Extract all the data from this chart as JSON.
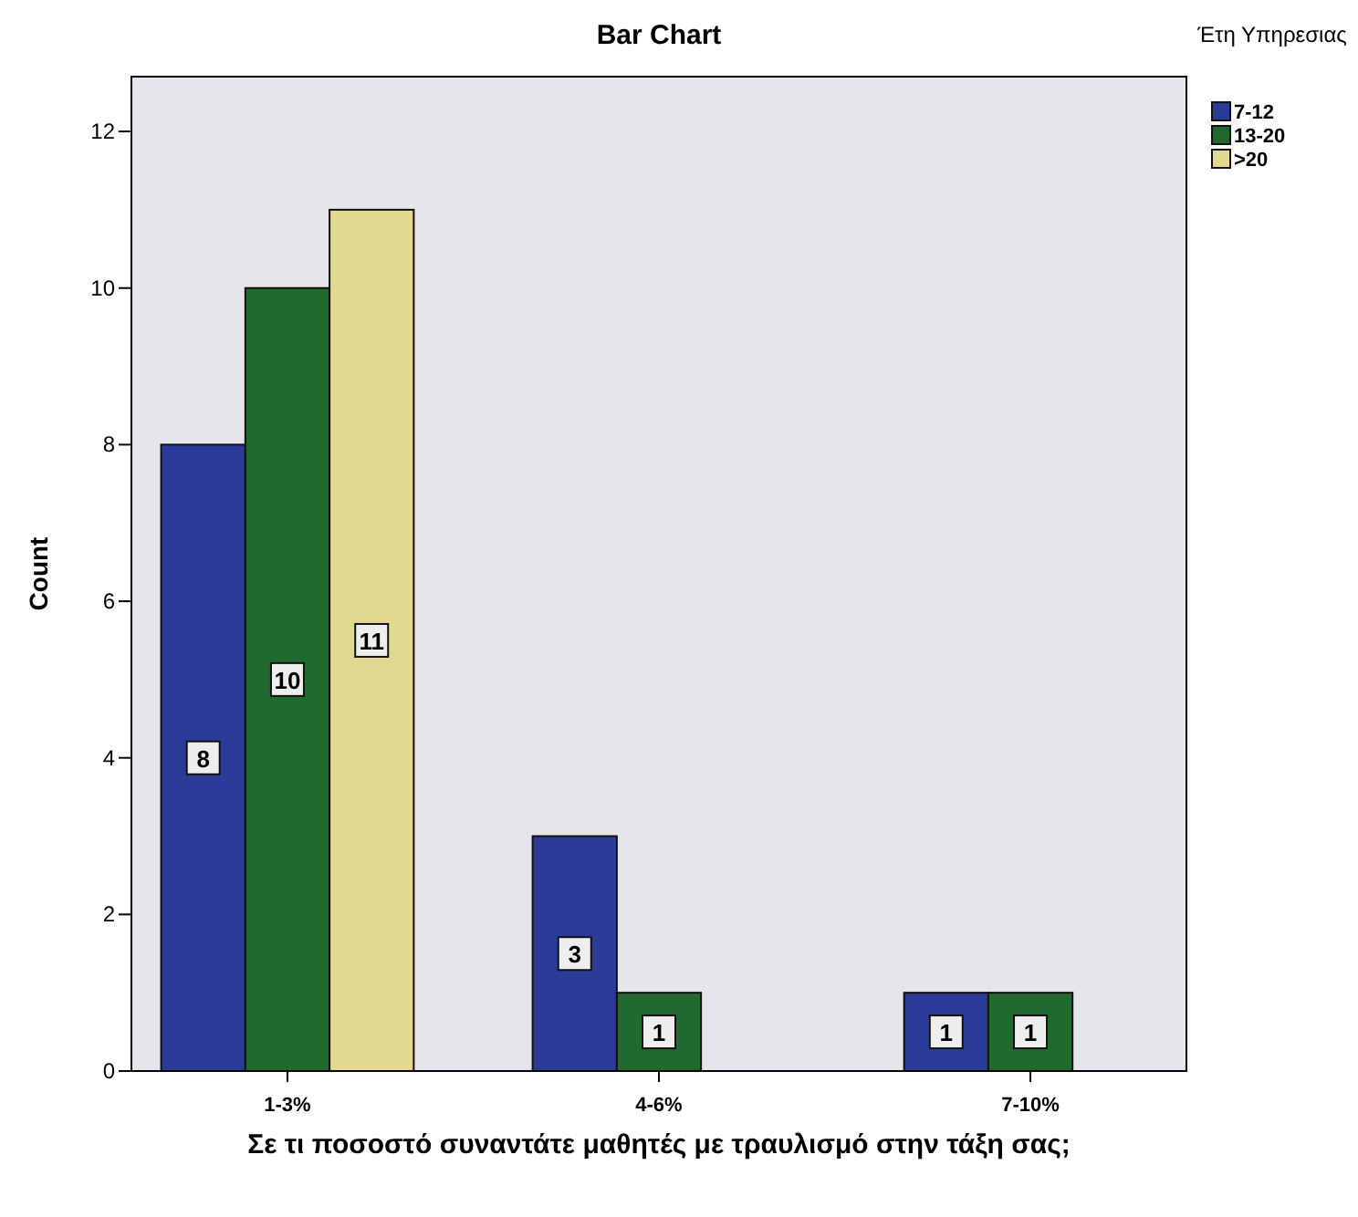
{
  "chart_data": {
    "type": "bar",
    "title": "Bar Chart",
    "xlabel": "Σε τι ποσοστό συναντάτε μαθητές με τραυλισμό στην τάξη σας;",
    "ylabel": "Count",
    "legend_title": "Έτη Υπηρεσιας",
    "categories": [
      "1-3%",
      "4-6%",
      "7-10%"
    ],
    "series": [
      {
        "name": "7-12",
        "color": "#2b3b98",
        "values": [
          8,
          3,
          1
        ]
      },
      {
        "name": "13-20",
        "color": "#1f6a2c",
        "values": [
          10,
          1,
          1
        ]
      },
      {
        "name": ">20",
        "color": "#e2d892",
        "values": [
          11,
          null,
          null
        ]
      }
    ],
    "ylim": [
      0,
      12.7
    ],
    "yticks": [
      0,
      2,
      4,
      6,
      8,
      10,
      12
    ],
    "data_labels": true,
    "legend": "top right",
    "grid": false
  }
}
